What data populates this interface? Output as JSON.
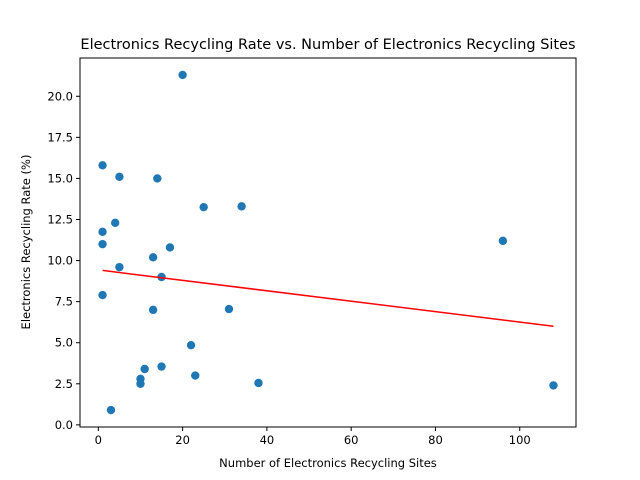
{
  "chart_data": {
    "type": "scatter",
    "title": "Electronics Recycling Rate vs. Number of Electronics Recycling Sites",
    "xlabel": "Number of Electronics Recycling Sites",
    "ylabel": "Electronics Recycling Rate (%)",
    "xlim": [
      -4.35,
      113.35
    ],
    "ylim": [
      -0.13,
      22.33
    ],
    "xticks": [
      0,
      20,
      40,
      60,
      80,
      100
    ],
    "xtick_labels": [
      "0",
      "20",
      "40",
      "60",
      "80",
      "100"
    ],
    "yticks": [
      0.0,
      2.5,
      5.0,
      7.5,
      10.0,
      12.5,
      15.0,
      17.5,
      20.0
    ],
    "ytick_labels": [
      "0.0",
      "2.5",
      "5.0",
      "7.5",
      "10.0",
      "12.5",
      "15.0",
      "17.5",
      "20.0"
    ],
    "grid": false,
    "marker_color": "#1f77b4",
    "trend_color": "#ff0000",
    "series": [
      {
        "points": [
          {
            "x": 1,
            "y": 15.8
          },
          {
            "x": 1,
            "y": 11.75
          },
          {
            "x": 1,
            "y": 11.0
          },
          {
            "x": 1,
            "y": 7.9
          },
          {
            "x": 3,
            "y": 0.9
          },
          {
            "x": 4,
            "y": 12.3
          },
          {
            "x": 5,
            "y": 15.1
          },
          {
            "x": 5,
            "y": 9.6
          },
          {
            "x": 10,
            "y": 2.8
          },
          {
            "x": 10,
            "y": 2.5
          },
          {
            "x": 11,
            "y": 3.4
          },
          {
            "x": 13,
            "y": 10.2
          },
          {
            "x": 13,
            "y": 7.0
          },
          {
            "x": 14,
            "y": 15.0
          },
          {
            "x": 15,
            "y": 9.0
          },
          {
            "x": 15,
            "y": 3.55
          },
          {
            "x": 17,
            "y": 10.8
          },
          {
            "x": 20,
            "y": 21.3
          },
          {
            "x": 22,
            "y": 4.85
          },
          {
            "x": 23,
            "y": 3.0
          },
          {
            "x": 25,
            "y": 13.25
          },
          {
            "x": 31,
            "y": 7.05
          },
          {
            "x": 34,
            "y": 13.3
          },
          {
            "x": 38,
            "y": 2.55
          },
          {
            "x": 96,
            "y": 11.2
          },
          {
            "x": 108,
            "y": 2.4
          }
        ]
      }
    ],
    "trendline": {
      "x": [
        1,
        108
      ],
      "y": [
        9.4,
        6.0
      ]
    }
  }
}
